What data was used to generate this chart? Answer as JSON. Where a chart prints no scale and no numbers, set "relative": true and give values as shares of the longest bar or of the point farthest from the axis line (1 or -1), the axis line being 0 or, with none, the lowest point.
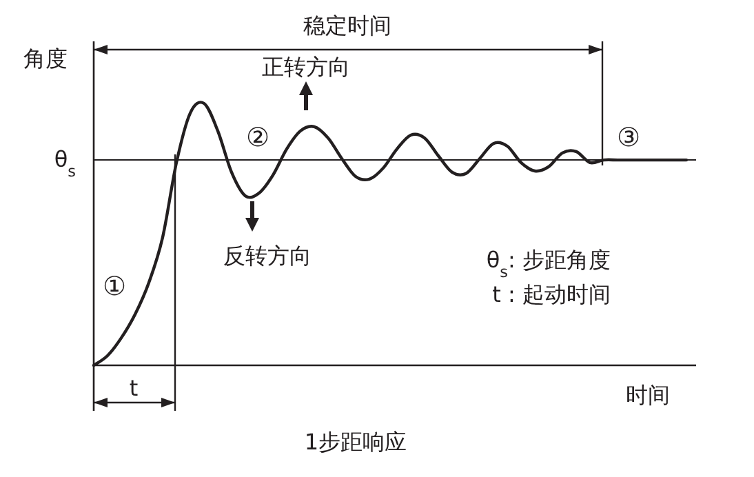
{
  "chart_data": {
    "type": "line",
    "relative": true,
    "ylabel": "角度",
    "xlabel": "时间",
    "categories": [
      null,
      null,
      null,
      null,
      null,
      null,
      null,
      null,
      null,
      null,
      null,
      null,
      null,
      null,
      null,
      null,
      null,
      null,
      null,
      null,
      null,
      null,
      null,
      null,
      null,
      null,
      null,
      null,
      null,
      null,
      null,
      null,
      null,
      null,
      null,
      null,
      null,
      null,
      null,
      null,
      null,
      null,
      null,
      null
    ],
    "series": [
      {
        "color": "#231f20",
        "values": [
          0,
          0.037,
          0.105,
          0.195,
          0.316,
          0.489,
          0.774,
          0.963,
          1,
          0.895,
          0.737,
          0.647,
          0.658,
          0.726,
          0.826,
          0.895,
          0.911,
          0.868,
          0.789,
          0.721,
          0.711,
          0.753,
          0.826,
          0.879,
          0.868,
          0.8,
          0.737,
          0.732,
          0.789,
          0.847,
          0.837,
          0.774,
          0.742,
          0.758,
          0.811,
          0.816,
          0.774,
          0.784,
          0.784,
          0.784,
          0.784,
          0.784,
          0.784,
          0.784
        ]
      }
    ],
    "ref_lines": [
      {
        "axis": "y",
        "value": 0.784,
        "label": "θ$_{s}$"
      }
    ],
    "annotations": [
      "稳定时间",
      "正转方向",
      "反转方向",
      "①",
      "②",
      "③",
      "θ$_{s}$: 步距角度",
      "t : 起动时间",
      "t",
      "1步距响应"
    ],
    "marker": "none",
    "line_style": "solid"
  }
}
